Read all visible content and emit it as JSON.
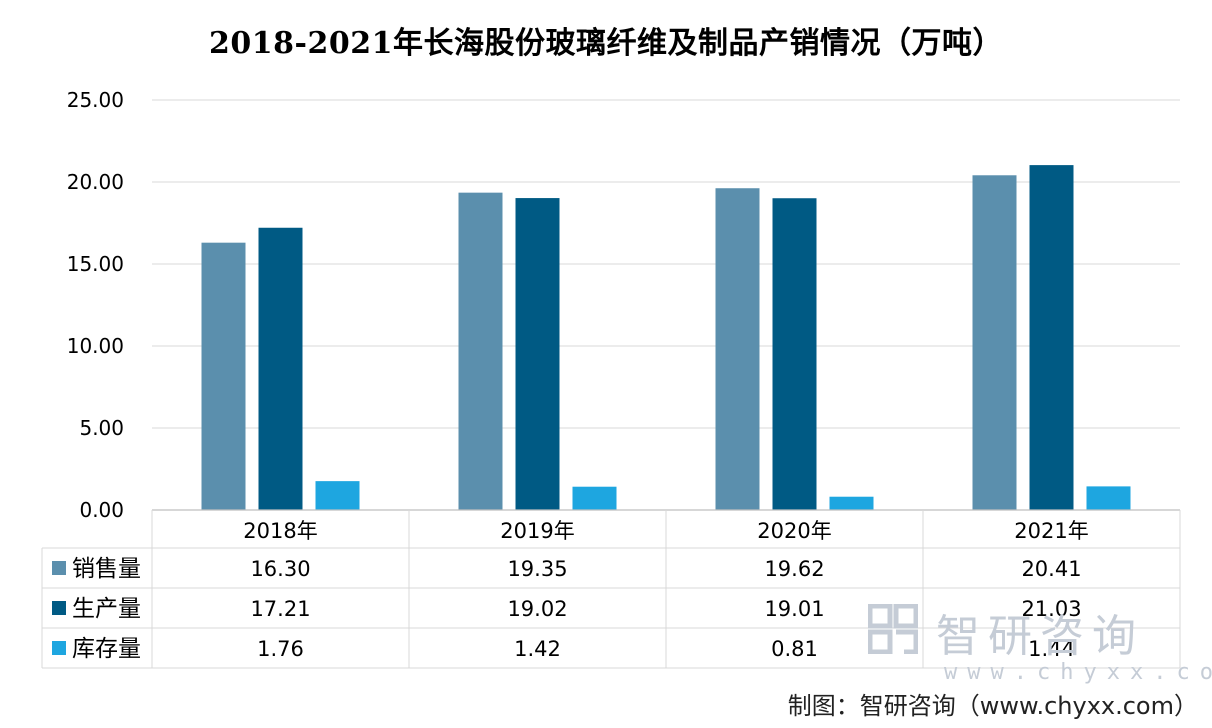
{
  "chart_data": {
    "type": "bar",
    "title": "2018-2021年长海股份玻璃纤维及制品产销情况（万吨）",
    "categories": [
      "2018年",
      "2019年",
      "2020年",
      "2021年"
    ],
    "series": [
      {
        "name": "销售量",
        "values": [
          16.3,
          19.35,
          19.62,
          20.41
        ],
        "labels": [
          "16.30",
          "19.35",
          "19.62",
          "20.41"
        ],
        "color": "#5b8fad"
      },
      {
        "name": "生产量",
        "values": [
          17.21,
          19.02,
          19.01,
          21.03
        ],
        "labels": [
          "17.21",
          "19.02",
          "19.01",
          "21.03"
        ],
        "color": "#005a84"
      },
      {
        "name": "库存量",
        "values": [
          1.76,
          1.42,
          0.81,
          1.44
        ],
        "labels": [
          "1.76",
          "1.42",
          "0.81",
          "1.44"
        ],
        "color": "#1ea6e0"
      }
    ],
    "yticks": [
      "0.00",
      "5.00",
      "10.00",
      "15.00",
      "20.00",
      "25.00"
    ],
    "ylim": [
      0,
      25
    ],
    "grid": true,
    "legend": "data-table"
  },
  "watermark": {
    "brand": "智研咨询",
    "url": "www.chyxx.com"
  },
  "source": "制图：智研咨询（www.chyxx.com）"
}
